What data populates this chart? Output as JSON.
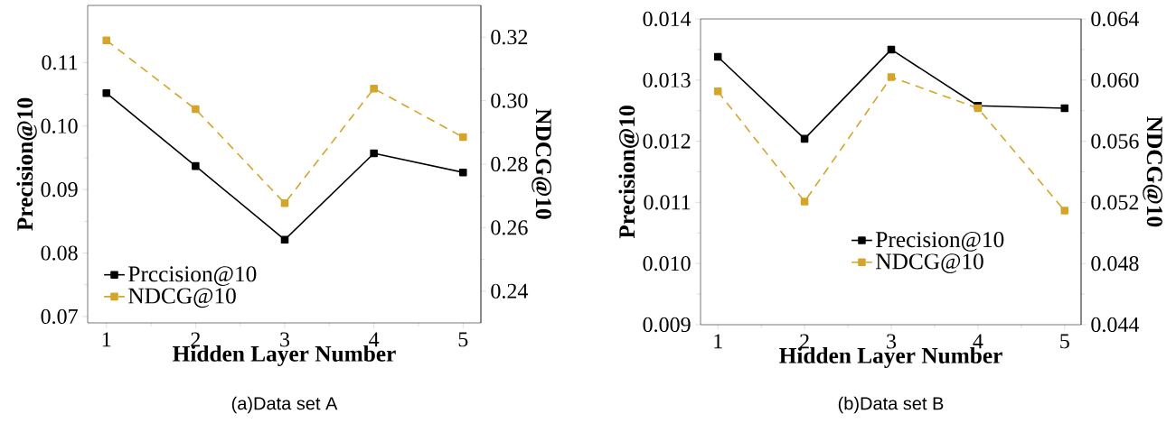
{
  "chart_data": [
    {
      "type": "line",
      "xlabel": "Hidden Layer Number",
      "ylabel": "Precision@10",
      "y2label": "NDCG@10",
      "x": [
        1,
        2,
        3,
        4,
        5
      ],
      "xlim": [
        0.79,
        5.2
      ],
      "xticks": [
        1,
        2,
        3,
        4,
        5
      ],
      "ylim": [
        0.069,
        0.119
      ],
      "yticks": [
        0.07,
        0.08,
        0.09,
        {
          "value": 0.1,
          "label": "0.10"
        },
        0.11
      ],
      "y2lim": [
        0.23,
        0.33
      ],
      "y2ticks": [
        0.24,
        0.26,
        0.28,
        {
          "value": 0.3,
          "label": "0.30"
        },
        0.32
      ],
      "marker": "square",
      "legend": "bottom left",
      "series": [
        {
          "name": "Prccision@10",
          "color": "#000000",
          "line_style": "solid",
          "values": [
            0.1052,
            0.0937,
            0.0821,
            0.0957,
            0.0927
          ]
        },
        {
          "name": "NDCG@10",
          "color": "#d4a52a",
          "line_style": "dashed",
          "axis": "y2",
          "values": [
            0.319,
            0.2973,
            0.2677,
            0.3038,
            0.2885
          ]
        }
      ],
      "annotations": [
        "(a)Data set A"
      ]
    },
    {
      "type": "line",
      "xlabel": "Hidden Layer Number",
      "ylabel": "Precision@10",
      "y2label": "NDCG@10",
      "x": [
        1,
        2,
        3,
        4,
        5
      ],
      "xlim": [
        0.8,
        5.19
      ],
      "xticks": [
        1,
        2,
        3,
        4,
        5
      ],
      "ylim": [
        0.009,
        0.014
      ],
      "yticks": [
        0.009,
        {
          "value": 0.01,
          "label": "0.010"
        },
        0.011,
        0.012,
        0.013,
        0.014
      ],
      "y2lim": [
        0.044,
        0.064
      ],
      "y2ticks": [
        0.044,
        0.048,
        0.052,
        0.056,
        {
          "value": 0.06,
          "label": "0.060"
        },
        0.064
      ],
      "marker": "square",
      "legend": "bottom",
      "series": [
        {
          "name": "Precision@10",
          "color": "#000000",
          "line_style": "solid",
          "values": [
            0.01338,
            0.01204,
            0.0135,
            0.01258,
            0.01254
          ]
        },
        {
          "name": "NDCG@10",
          "color": "#d4a52a",
          "line_style": "dashed",
          "axis": "y2",
          "values": [
            0.05926,
            0.05205,
            0.0602,
            0.05816,
            0.05146
          ]
        }
      ],
      "annotations": [
        "(b)Data set B"
      ]
    }
  ]
}
